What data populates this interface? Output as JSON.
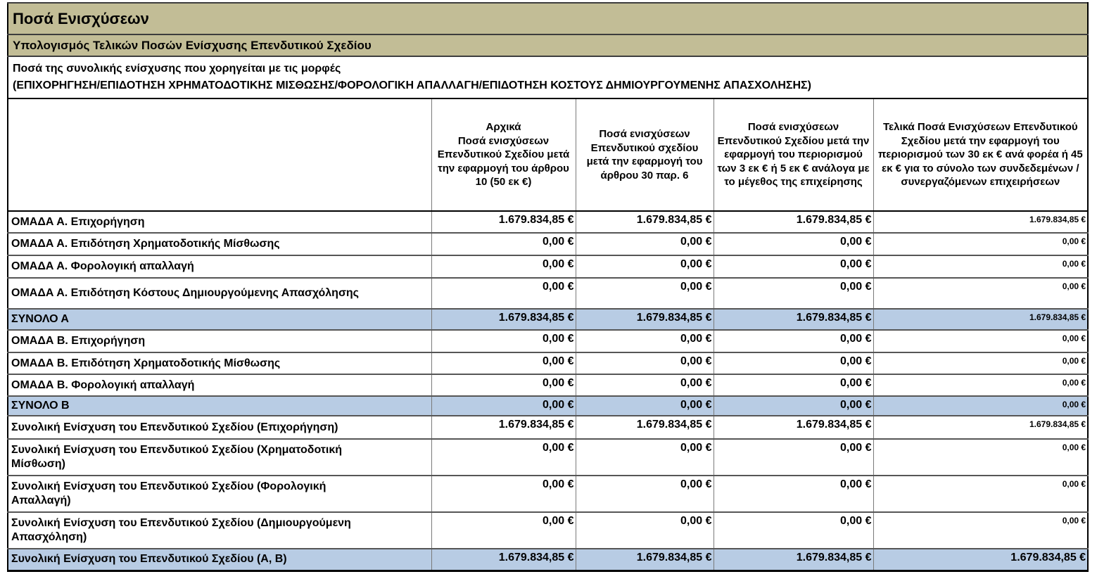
{
  "page": {
    "title": "Ποσά Ενισχύσεων",
    "subtitle": "Υπολογισμός Τελικών Ποσών Ενίσχυσης Επενδυτικού Σχεδίου",
    "description_line1": "Ποσά της συνολικής ενίσχυσης που χορηγείται με τις μορφές",
    "description_line2": "(ΕΠΙΧΟΡΗΓΗΣΗ/ΕΠΙΔΟΤΗΣΗ ΧΡΗΜΑΤΟΔΟΤΙΚΗΣ ΜΙΣΘΩΣΗΣ/ΦΟΡΟΛΟΓΙΚΗ ΑΠΑΛΛΑΓΗ/ΕΠΙΔΟΤΗΣΗ ΚΟΣΤΟΥΣ ΔΗΜΙΟΥΡΓΟΥΜΕΝΗΣ ΑΠΑΣΧΟΛΗΣΗΣ)"
  },
  "colors": {
    "banner_background": "#c2bd96",
    "total_row_background": "#b8cce4"
  },
  "table": {
    "header": {
      "col0": "",
      "col1": "Αρχικά\nΠοσά ενισχύσεων Επενδυτικού Σχεδίου μετά την εφαρμογή του άρθρου 10 (50 εκ €)",
      "col2": "Ποσά ενισχύσεων Επενδυτικού σχεδίου μετά την εφαρμογή του άρθρου 30 παρ. 6",
      "col3": "Ποσά ενισχύσεων Επενδυτικού Σχεδίου μετά την εφαρμογή του περιορισμού των 3 εκ € ή 5 εκ € ανάλογα με το μέγεθος της επιχείρησης",
      "col4": "Τελικά Ποσά Ενισχύσεων Επενδυτικού Σχεδίου μετά την εφαρμογή του περιορισμού των 30 εκ € ανά φορέα ή 45 εκ € για το σύνολο των συνδεδεμένων /συνεργαζόμενων επιχειρήσεων"
    },
    "rows": [
      {
        "label": "ΟΜΑΔΑ Α. Επιχορήγηση",
        "highlight": false,
        "values": [
          "1.679.834,85 €",
          "1.679.834,85 €",
          "1.679.834,85 €",
          "1.679.834,85 €"
        ]
      },
      {
        "label": "ΟΜΑΔΑ Α. Επιδότηση Χρηματοδοτικής Μίσθωσης",
        "highlight": false,
        "values": [
          "0,00 €",
          "0,00 €",
          "0,00 €",
          "0,00 €"
        ]
      },
      {
        "label": "ΟΜΑΔΑ Α. Φορολογική απαλλαγή",
        "highlight": false,
        "values": [
          "0,00 €",
          "0,00 €",
          "0,00 €",
          "0,00 €"
        ]
      },
      {
        "label": "ΟΜΑΔΑ Α. Επιδότηση Κόστους Δημιουργούμενης Απασχόλησης",
        "highlight": false,
        "values": [
          "0,00 €",
          "0,00 €",
          "0,00 €",
          "0,00 €"
        ]
      },
      {
        "label": "ΣΥΝΟΛΟ Α",
        "highlight": true,
        "values": [
          "1.679.834,85 €",
          "1.679.834,85 €",
          "1.679.834,85 €",
          "1.679.834,85 €"
        ]
      },
      {
        "label": "ΟΜΑΔΑ Β. Επιχορήγηση",
        "highlight": false,
        "values": [
          "0,00 €",
          "0,00 €",
          "0,00 €",
          "0,00 €"
        ]
      },
      {
        "label": "ΟΜΑΔΑ Β. Επιδότηση Χρηματοδοτικής Μίσθωσης",
        "highlight": false,
        "values": [
          "0,00 €",
          "0,00 €",
          "0,00 €",
          "0,00 €"
        ]
      },
      {
        "label": "ΟΜΑΔΑ Β. Φορολογική απαλλαγή",
        "highlight": false,
        "values": [
          "0,00 €",
          "0,00 €",
          "0,00 €",
          "0,00 €"
        ]
      },
      {
        "label": "ΣΥΝΟΛΟ Β",
        "highlight": true,
        "values": [
          "0,00 €",
          "0,00 €",
          "0,00 €",
          "0,00 €"
        ]
      },
      {
        "label": "Συνολική Ενίσχυση του Επενδυτικού Σχεδίου (Επιχορήγηση)",
        "highlight": false,
        "values": [
          "1.679.834,85 €",
          "1.679.834,85 €",
          "1.679.834,85 €",
          "1.679.834,85 €"
        ]
      },
      {
        "label": "Συνολική Ενίσχυση του Επενδυτικού Σχεδίου (Χρηματοδοτική\nΜίσθωση)",
        "highlight": false,
        "values": [
          "0,00 €",
          "0,00 €",
          "0,00 €",
          "0,00 €"
        ]
      },
      {
        "label": "Συνολική Ενίσχυση του Επενδυτικού Σχεδίου (Φορολογική\nΑπαλλαγή)",
        "highlight": false,
        "values": [
          "0,00 €",
          "0,00 €",
          "0,00 €",
          "0,00 €"
        ]
      },
      {
        "label": "Συνολική Ενίσχυση του Επενδυτικού Σχεδίου (Δημιουργούμενη\nΑπασχόληση)",
        "highlight": false,
        "values": [
          "0,00 €",
          "0,00 €",
          "0,00 €",
          "0,00 €"
        ]
      },
      {
        "label": "Συνολική Ενίσχυση του Επενδυτικού Σχεδίου (Α, Β)",
        "highlight": true,
        "values": [
          "1.679.834,85 €",
          "1.679.834,85 €",
          "1.679.834,85 €",
          "1.679.834,85 €"
        ]
      }
    ]
  }
}
